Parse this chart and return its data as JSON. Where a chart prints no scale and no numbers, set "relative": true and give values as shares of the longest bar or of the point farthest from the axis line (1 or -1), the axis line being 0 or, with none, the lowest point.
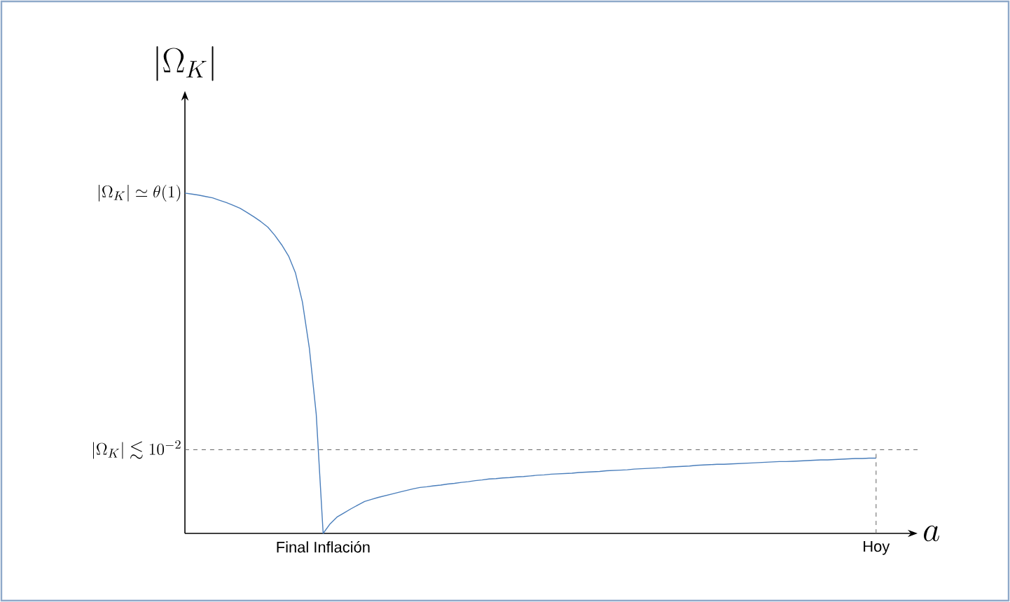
{
  "chart_data": {
    "type": "line",
    "relative": true,
    "xlabel": "a",
    "categories": [
      null,
      null,
      null,
      null,
      null,
      null,
      null,
      null,
      null,
      null,
      null,
      null,
      null,
      null,
      null,
      null,
      null,
      null,
      null,
      null,
      "Final Inflación",
      null,
      null,
      null,
      null,
      null,
      null,
      null,
      null,
      null,
      null,
      null,
      null,
      null,
      null,
      null,
      null,
      null,
      null,
      null,
      null,
      null,
      null,
      null,
      null,
      null,
      null,
      null,
      null,
      null,
      null,
      null,
      null,
      null,
      null,
      null,
      null,
      null,
      null,
      null,
      null,
      null,
      null,
      null,
      null,
      null,
      null,
      null,
      null,
      null,
      null,
      null,
      null,
      null,
      null,
      null,
      null,
      null,
      null,
      null,
      null,
      null,
      null,
      null,
      null,
      null,
      null,
      null,
      null,
      null,
      null,
      null,
      null,
      null,
      null,
      null,
      null,
      null,
      null,
      null,
      "Hoy"
    ],
    "series": [
      {
        "color": "#4a7ebb",
        "values": [
          1.0,
          0.997,
          0.994,
          0.99,
          0.986,
          0.979,
          0.972,
          0.964,
          0.955,
          0.943,
          0.93,
          0.916,
          0.9,
          0.876,
          0.848,
          0.815,
          0.765,
          0.68,
          0.545,
          0.35,
          0,
          0.028,
          0.048,
          0.06,
          0.072,
          0.083,
          0.094,
          0.1,
          0.106,
          0.111,
          0.116,
          0.121,
          0.126,
          0.131,
          0.135,
          0.137,
          0.14,
          0.142,
          0.145,
          0.147,
          0.15,
          0.152,
          0.155,
          0.157,
          0.16,
          0.161,
          0.163,
          0.164,
          0.166,
          0.167,
          0.169,
          0.171,
          0.172,
          0.174,
          0.175,
          0.176,
          0.177,
          0.179,
          0.18,
          0.181,
          0.182,
          0.184,
          0.185,
          0.186,
          0.187,
          0.189,
          0.19,
          0.191,
          0.192,
          0.193,
          0.195,
          0.196,
          0.197,
          0.198,
          0.2,
          0.201,
          0.202,
          0.203,
          0.203,
          0.204,
          0.205,
          0.206,
          0.207,
          0.208,
          0.209,
          0.21,
          0.211,
          0.211,
          0.212,
          0.213,
          0.214,
          0.215,
          0.216,
          0.216,
          0.217,
          0.218,
          0.219,
          0.22,
          0.22,
          0.221,
          0.221
        ]
      }
    ],
    "ref_lines": [
      {
        "axis": "y",
        "value": 0.246,
        "label": "|\\Omega_K|\\lesssim 10^{-2}",
        "line_style": "dashed",
        "color": "#606060"
      },
      {
        "axis": "x",
        "value": "Hoy",
        "line_style": "dashed",
        "color": "#606060"
      }
    ],
    "annotations": [
      "|\\Omega_K|\\simeq \\theta(1)",
      "|\\Omega_K|"
    ],
    "marker": "none",
    "line_style": "solid"
  }
}
